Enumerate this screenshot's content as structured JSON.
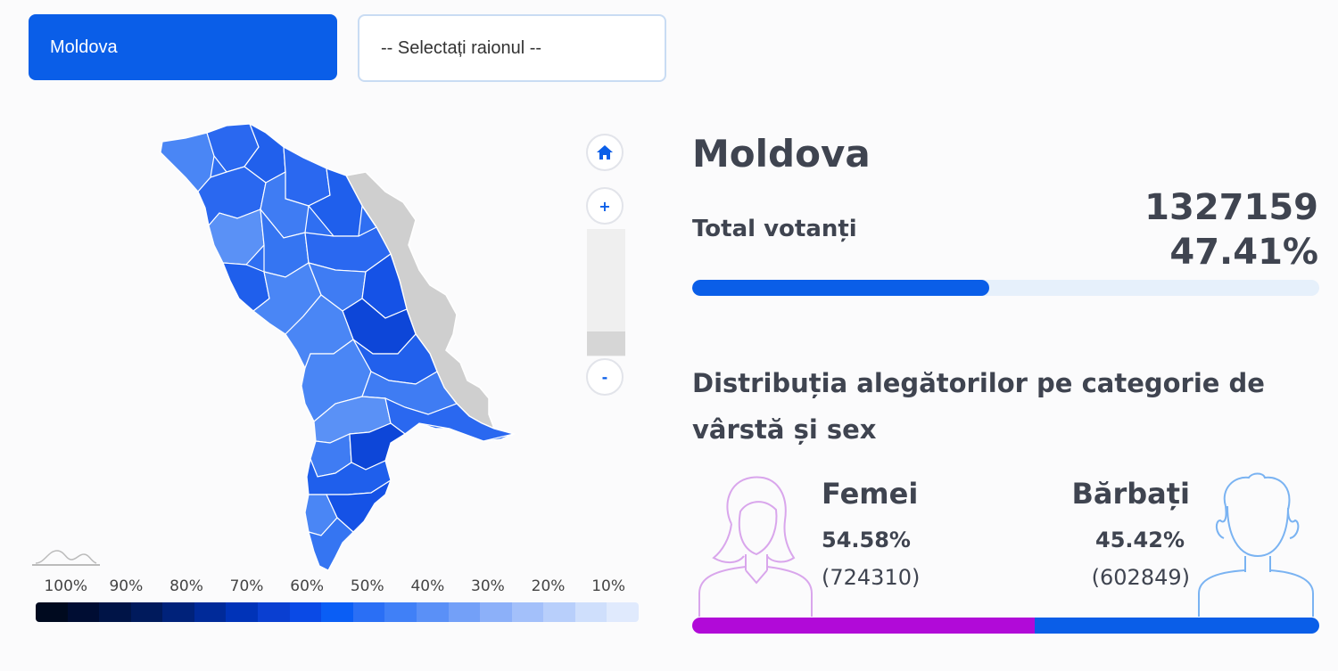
{
  "controls": {
    "country_button": "Moldova",
    "district_select": "-- Selectați raionul --"
  },
  "legend": {
    "labels": [
      "100%",
      "90%",
      "80%",
      "70%",
      "60%",
      "50%",
      "40%",
      "30%",
      "20%",
      "10%"
    ],
    "colors": [
      "#000a1f",
      "#000d33",
      "#001447",
      "#001a5c",
      "#00227a",
      "#002a99",
      "#0033b8",
      "#0a3fd1",
      "#0a4ae6",
      "#0a5ef5",
      "#2a6ff5",
      "#4080f7",
      "#5a90f7",
      "#73a0f8",
      "#8cb0f9",
      "#a3c0fa",
      "#b8cffb",
      "#cfdffc",
      "#e0eafd"
    ]
  },
  "zoom": {
    "home_icon": "home-icon",
    "zoom_in": "+",
    "zoom_out": "-",
    "level": 0.2
  },
  "summary": {
    "region": "Moldova",
    "total_label": "Total votanți",
    "total_voters": "1327159",
    "turnout_pct": "47.41%",
    "turnout_fraction": 0.4741
  },
  "distribution": {
    "title": "Distribuția alegătorilor pe categorie de vârstă și sex",
    "women": {
      "label": "Femei",
      "pct": "54.58%",
      "count": "(724310)",
      "fraction": 0.5458,
      "color": "#b10ad8"
    },
    "men": {
      "label": "Bărbați",
      "pct": "45.42%",
      "count": "(602849)",
      "fraction": 0.4542,
      "color": "#0a5ee8"
    }
  }
}
